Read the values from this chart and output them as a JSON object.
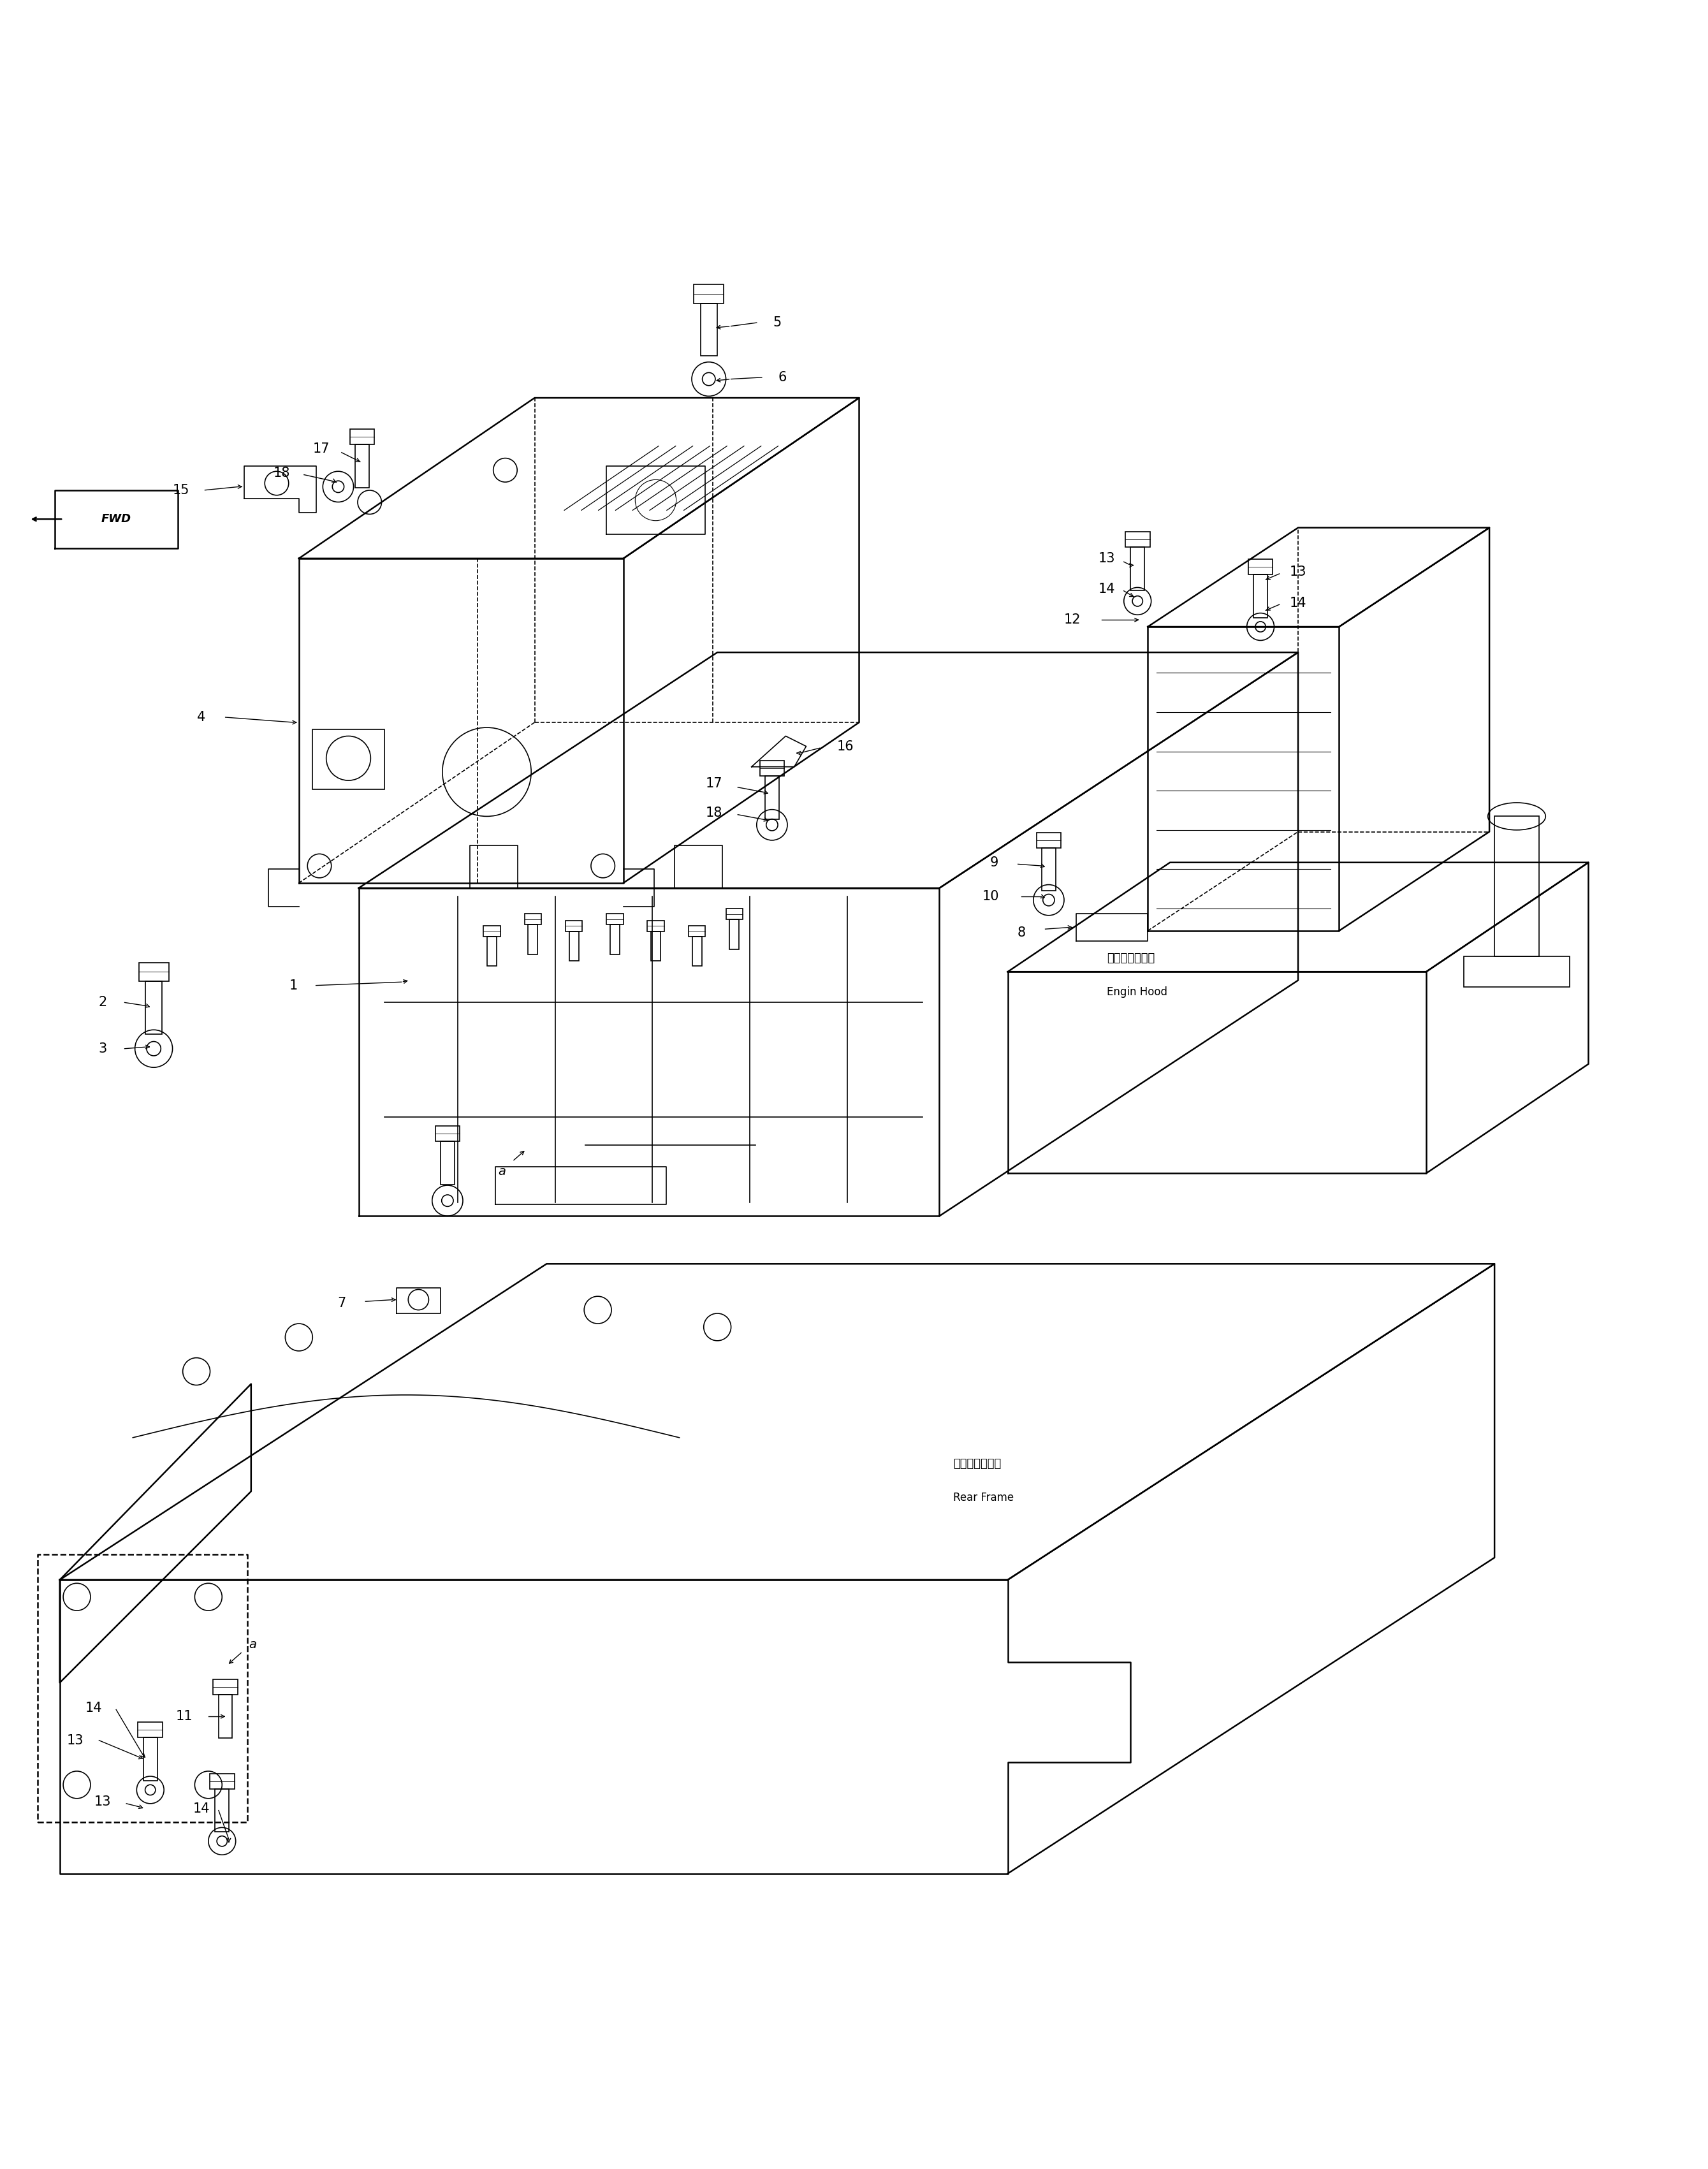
{
  "bg_color": "#ffffff",
  "line_color": "#000000",
  "fig_width": 26.79,
  "fig_height": 34.02,
  "lw_main": 1.8,
  "lw_thin": 1.2,
  "label_fontsize": 15,
  "engin_hood_ja": "エンジンフード",
  "engin_hood_en": "Engin Hood",
  "rear_frame_ja": "リヤーフレーム",
  "rear_frame_en": "Rear Frame",
  "fwd_text": "FWD"
}
